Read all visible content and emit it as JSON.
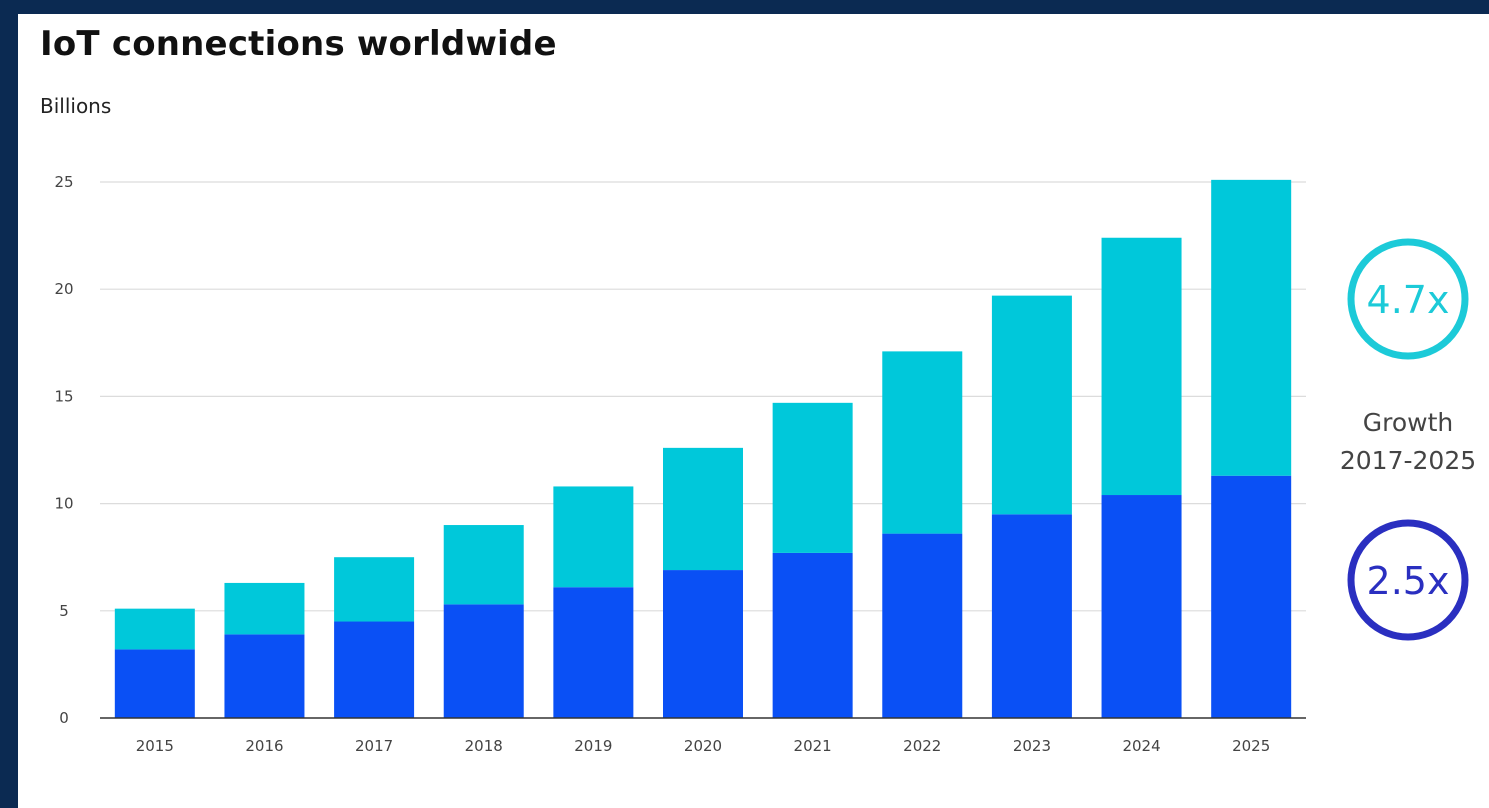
{
  "chart_data": {
    "type": "bar",
    "stacked": true,
    "title": "IoT connections worldwide",
    "subtitle": "Billions",
    "xlabel": "",
    "ylabel": "",
    "ylim": [
      0,
      25
    ],
    "yticks": [
      0,
      5,
      10,
      15,
      20,
      25
    ],
    "grid": true,
    "categories": [
      "2015",
      "2016",
      "2017",
      "2018",
      "2019",
      "2020",
      "2021",
      "2022",
      "2023",
      "2024",
      "2025"
    ],
    "series": [
      {
        "color": "#0a50f5",
        "values": [
          3.2,
          3.9,
          4.5,
          5.3,
          6.1,
          6.9,
          7.7,
          8.6,
          9.5,
          10.4,
          11.3
        ]
      },
      {
        "color": "#00c8da",
        "values": [
          1.9,
          2.4,
          3.0,
          3.7,
          4.7,
          5.7,
          7.0,
          8.5,
          10.2,
          12.0,
          13.8
        ]
      }
    ],
    "annotations": {
      "top_badge": {
        "label": "4.7x",
        "color": "#1ccad8"
      },
      "growth_label": [
        "Growth",
        "2017-2025"
      ],
      "bottom_badge": {
        "label": "2.5x",
        "color": "#2a2fc0"
      }
    }
  }
}
